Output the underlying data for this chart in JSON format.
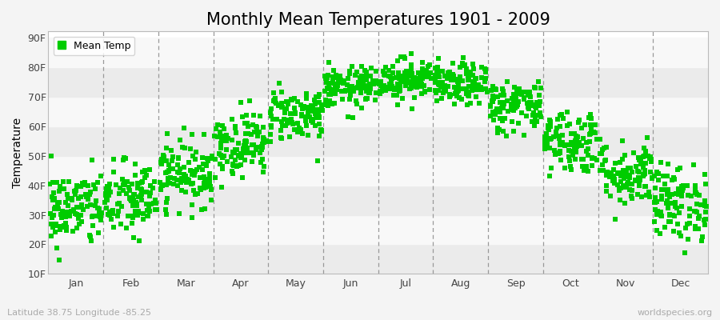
{
  "title": "Monthly Mean Temperatures 1901 - 2009",
  "ylabel": "Temperature",
  "xlabel_months": [
    "Jan",
    "Feb",
    "Mar",
    "Apr",
    "May",
    "Jun",
    "Jul",
    "Aug",
    "Sep",
    "Oct",
    "Nov",
    "Dec"
  ],
  "yticks": [
    10,
    20,
    30,
    40,
    50,
    60,
    70,
    80,
    90
  ],
  "ytick_labels": [
    "10F",
    "20F",
    "30F",
    "40F",
    "50F",
    "60F",
    "70F",
    "80F",
    "90F"
  ],
  "ylim": [
    10,
    92
  ],
  "dot_color": "#00cc00",
  "dot_size": 18,
  "dot_marker": "s",
  "background_color": "#f4f4f4",
  "plot_bg_color": "#ffffff",
  "band_color_even": "#ebebeb",
  "band_color_odd": "#f8f8f8",
  "legend_label": "Mean Temp",
  "subtitle": "Latitude 38.75 Longitude -85.25",
  "watermark": "worldspecies.org",
  "title_fontsize": 15,
  "label_fontsize": 10,
  "tick_fontsize": 9,
  "n_years": 109,
  "monthly_means": [
    32,
    35,
    44,
    54,
    64,
    73,
    76,
    74,
    67,
    55,
    44,
    34
  ],
  "monthly_stds": [
    6.5,
    6.5,
    5.5,
    5.5,
    4.5,
    3.5,
    3.5,
    3.5,
    4.5,
    5.5,
    5.5,
    6.5
  ],
  "seed": 42
}
